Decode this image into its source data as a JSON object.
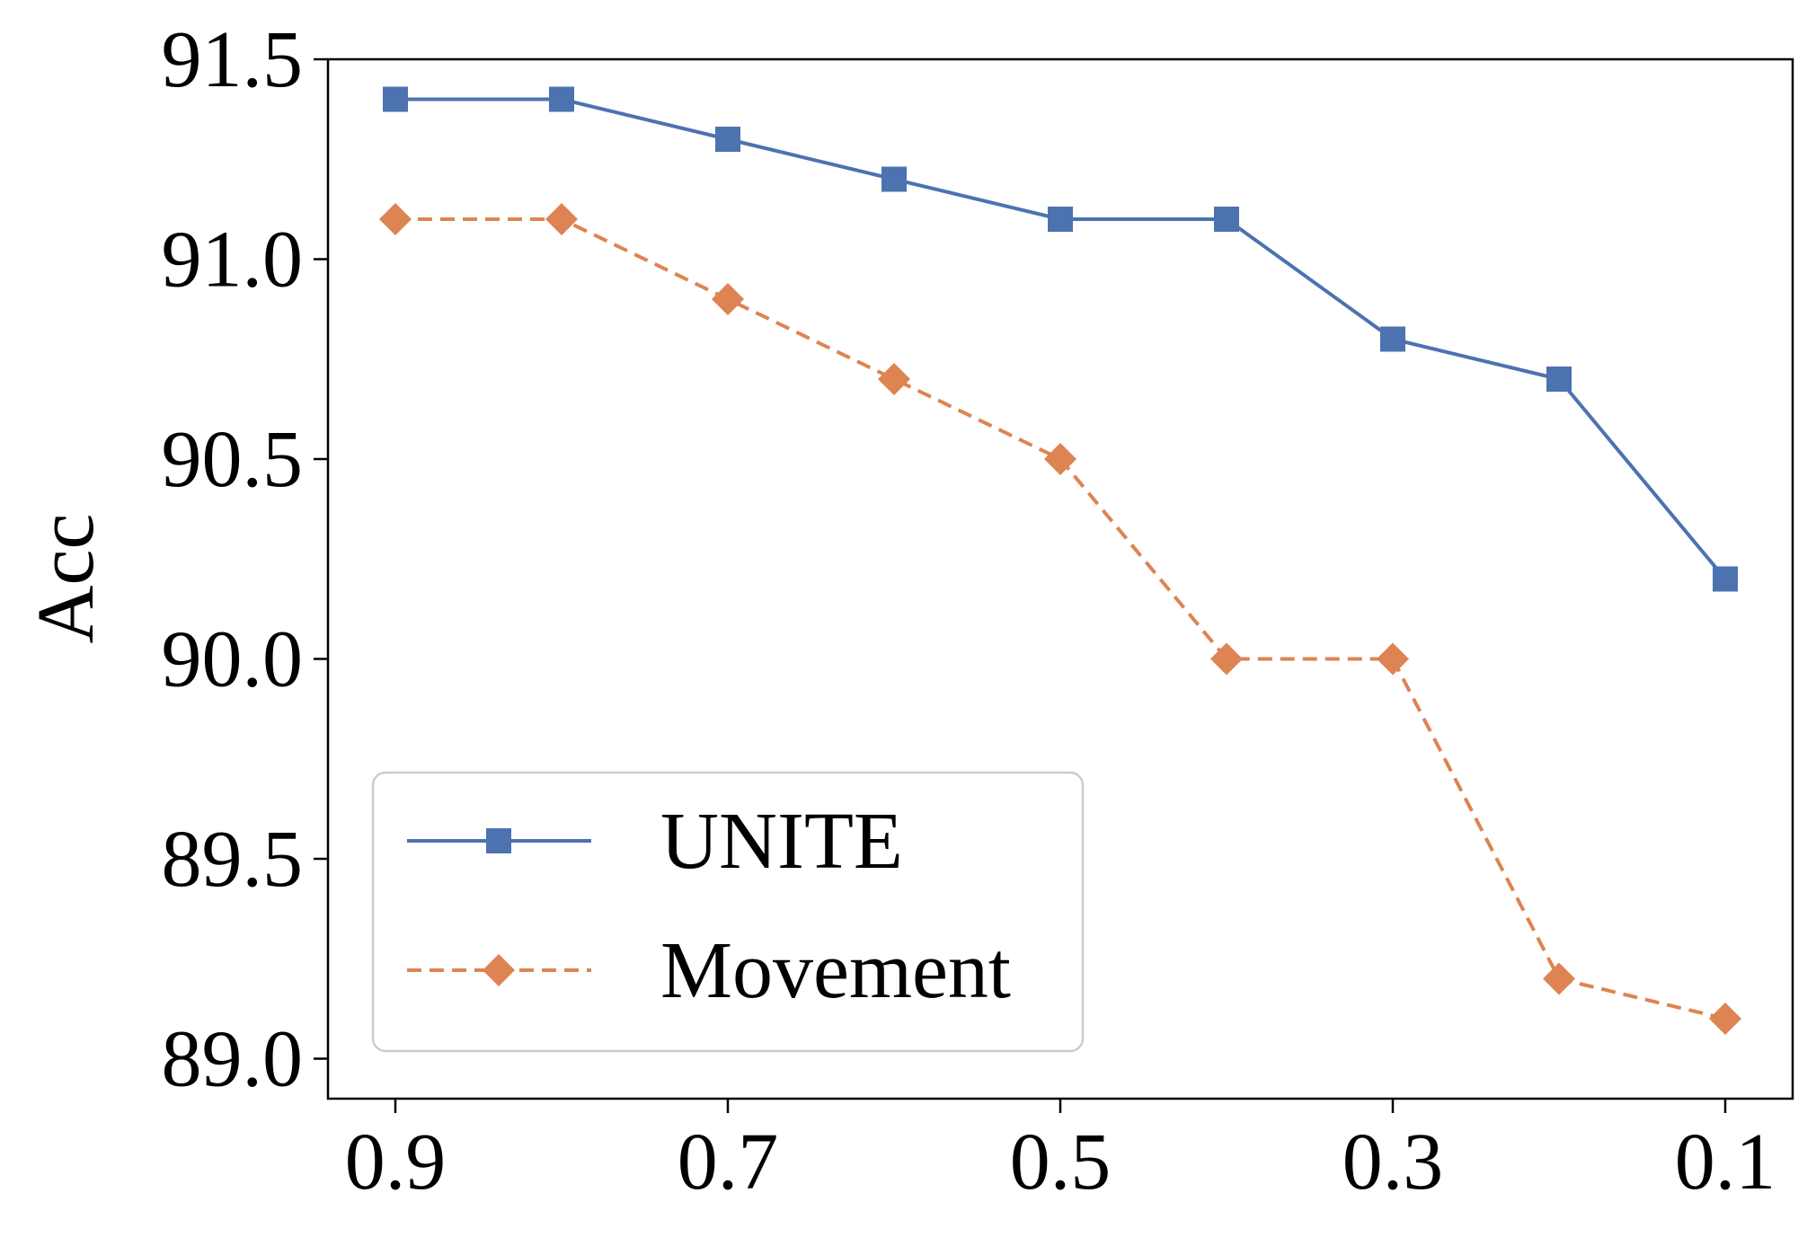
{
  "chart_data": {
    "type": "line",
    "x": [
      0.9,
      0.8,
      0.7,
      0.6,
      0.5,
      0.4,
      0.3,
      0.2,
      0.1
    ],
    "xticks": [
      "0.9",
      "0.7",
      "0.5",
      "0.3",
      "0.1"
    ],
    "xtick_values": [
      0.9,
      0.7,
      0.5,
      0.3,
      0.1
    ],
    "x_direction": "descending",
    "xlabel": "",
    "ylabel": "Acc",
    "ylim": [
      88.9,
      91.5
    ],
    "yticks": [
      "89.0",
      "89.5",
      "90.0",
      "90.5",
      "91.0",
      "91.5"
    ],
    "ytick_values": [
      89.0,
      89.5,
      90.0,
      90.5,
      91.0,
      91.5
    ],
    "grid": false,
    "legend_position": "lower-left",
    "series": [
      {
        "name": "UNITE",
        "values": [
          91.4,
          91.4,
          91.3,
          91.2,
          91.1,
          91.1,
          90.8,
          90.7,
          90.2
        ],
        "color": "#4c72b0",
        "line_style": "solid",
        "marker": "square"
      },
      {
        "name": "Movement",
        "values": [
          91.1,
          91.1,
          90.9,
          90.7,
          90.5,
          90.0,
          90.0,
          89.2,
          89.1
        ],
        "color": "#dd8452",
        "line_style": "dashed",
        "marker": "diamond"
      }
    ]
  }
}
